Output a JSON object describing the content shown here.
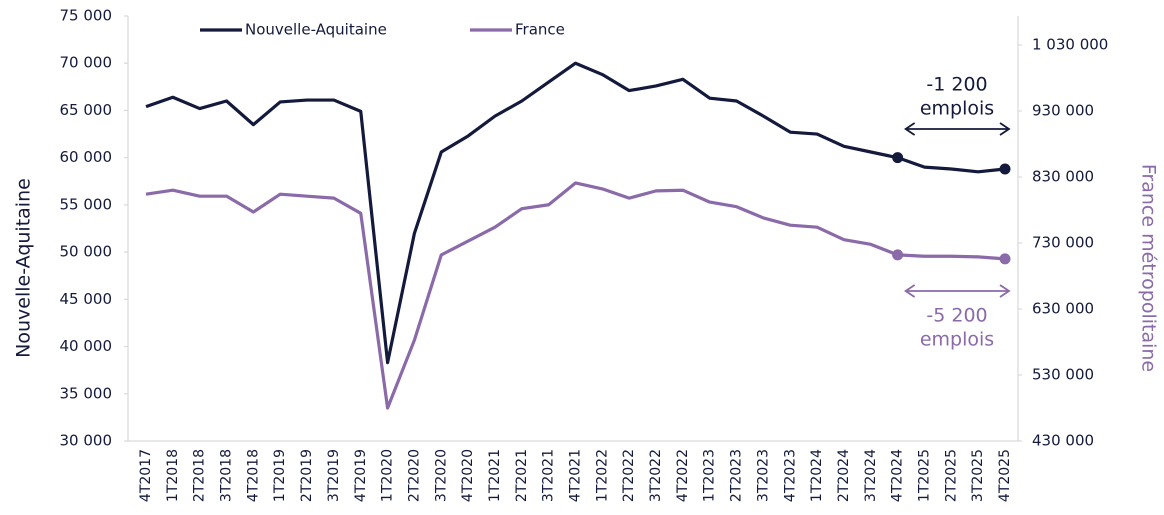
{
  "chart_data": {
    "type": "line",
    "y_label": "Nouvelle-Aquitaine",
    "y2_label": "France métropolitaine",
    "categories": [
      "4T2017",
      "1T2018",
      "2T2018",
      "3T2018",
      "4T2018",
      "1T2019",
      "2T2019",
      "3T2019",
      "4T2019",
      "1T2020",
      "2T2020",
      "3T2020",
      "4T2020",
      "1T2021",
      "2T2021",
      "3T2021",
      "4T2021",
      "1T2022",
      "2T2022",
      "3T2022",
      "4T2022",
      "1T2023",
      "2T2023",
      "3T2023",
      "4T2023",
      "1T2024",
      "2T2024",
      "3T2024",
      "4T2024",
      "1T2025",
      "2T2025",
      "3T2025",
      "4T2025"
    ],
    "series": [
      {
        "name": "Nouvelle-Aquitaine",
        "color": "#141a3c",
        "axis": "y",
        "values": [
          65400,
          66400,
          65200,
          66000,
          63500,
          65900,
          66100,
          66100,
          64900,
          38300,
          52000,
          60600,
          62300,
          64400,
          66000,
          68000,
          70000,
          68800,
          67100,
          67600,
          68300,
          66300,
          66000,
          64400,
          62700,
          62500,
          61200,
          60600,
          60000,
          59000,
          58800,
          58500,
          58800
        ],
        "marker_indices": [
          28,
          32
        ]
      },
      {
        "name": "France",
        "color": "#8a6aa8",
        "axis": "y2",
        "values": [
          804000,
          810000,
          801000,
          801000,
          777000,
          804000,
          801000,
          798000,
          775000,
          480000,
          583000,
          712000,
          733000,
          754000,
          782000,
          788000,
          821000,
          812000,
          798000,
          809000,
          810000,
          792000,
          785000,
          768000,
          757000,
          754000,
          735000,
          728000,
          712000,
          710000,
          710000,
          709000,
          706000
        ],
        "marker_indices": [
          28,
          32
        ]
      }
    ],
    "ylim": [
      30000,
      75000
    ],
    "yticks": [
      {
        "value": 30000,
        "label": "30 000"
      },
      {
        "value": 35000,
        "label": "35 000"
      },
      {
        "value": 40000,
        "label": "40 000"
      },
      {
        "value": 45000,
        "label": "45 000"
      },
      {
        "value": 50000,
        "label": "50 000"
      },
      {
        "value": 55000,
        "label": "55 000"
      },
      {
        "value": 60000,
        "label": "60 000"
      },
      {
        "value": 65000,
        "label": "65 000"
      },
      {
        "value": 70000,
        "label": "70 000"
      },
      {
        "value": 75000,
        "label": "75 000"
      }
    ],
    "y2lim": [
      430000,
      1074000
    ],
    "y2ticks": [
      {
        "value": 430000,
        "label": "430 000"
      },
      {
        "value": 530000,
        "label": "530 000"
      },
      {
        "value": 630000,
        "label": "630 000"
      },
      {
        "value": 730000,
        "label": "730 000"
      },
      {
        "value": 830000,
        "label": "830 000"
      },
      {
        "value": 930000,
        "label": "930 000"
      },
      {
        "value": 1030000,
        "label": "1 030 000"
      }
    ],
    "annotations": [
      {
        "lines": [
          "-1 200",
          "emplois"
        ],
        "color": "#141a3c"
      },
      {
        "lines": [
          "-5 200",
          "emplois"
        ],
        "color": "#8a6aa8"
      }
    ],
    "grid": false,
    "legend": "top"
  }
}
